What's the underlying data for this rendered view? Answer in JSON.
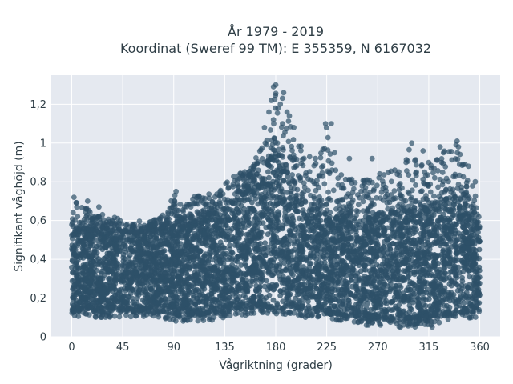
{
  "chart_data": {
    "type": "scatter",
    "title": "År 1979 - 2019",
    "subtitle": "Koordinat (Sweref 99 TM): E 355359, N 6167032",
    "xlabel": "Vågriktning (grader)",
    "ylabel": "Signifikant våghöjd (m)",
    "xlim": [
      -18,
      378
    ],
    "ylim": [
      0,
      1.35
    ],
    "grid": true,
    "x_ticks": [
      0,
      45,
      90,
      135,
      180,
      225,
      270,
      315,
      360
    ],
    "x_tick_labels": [
      "0",
      "45",
      "90",
      "135",
      "180",
      "225",
      "270",
      "315",
      "360"
    ],
    "y_ticks": [
      0,
      0.2,
      0.4,
      0.6,
      0.8,
      1.0,
      1.2
    ],
    "y_tick_labels": [
      "0",
      "0,2",
      "0,4",
      "0,6",
      "0,8",
      "1",
      "1,2"
    ],
    "colors": {
      "marker": "#2e5068",
      "plot_bg": "#e5e9f0",
      "grid": "#ffffff"
    },
    "series": [
      {
        "x": [
          0,
          5,
          10,
          15,
          20,
          25,
          30,
          35,
          40,
          45,
          50,
          55,
          60,
          65,
          70,
          75,
          80,
          85,
          90,
          95,
          100,
          105,
          110,
          115,
          120,
          125,
          130,
          135,
          140,
          145,
          150,
          155,
          160,
          165,
          170,
          175,
          180,
          185,
          190,
          195,
          200,
          205,
          210,
          215,
          220,
          225,
          230,
          235,
          240,
          245,
          250,
          255,
          260,
          265,
          270,
          275,
          280,
          285,
          290,
          295,
          300,
          305,
          310,
          315,
          320,
          325,
          330,
          335,
          340,
          345,
          350,
          355,
          360
        ],
        "y_min": [
          0.1,
          0.09,
          0.1,
          0.11,
          0.1,
          0.1,
          0.08,
          0.1,
          0.1,
          0.1,
          0.1,
          0.1,
          0.1,
          0.1,
          0.1,
          0.1,
          0.09,
          0.09,
          0.08,
          0.08,
          0.08,
          0.08,
          0.08,
          0.08,
          0.09,
          0.08,
          0.09,
          0.1,
          0.1,
          0.11,
          0.11,
          0.11,
          0.12,
          0.12,
          0.12,
          0.12,
          0.12,
          0.11,
          0.11,
          0.12,
          0.11,
          0.1,
          0.1,
          0.1,
          0.1,
          0.09,
          0.08,
          0.08,
          0.08,
          0.07,
          0.07,
          0.07,
          0.06,
          0.06,
          0.06,
          0.06,
          0.05,
          0.05,
          0.05,
          0.05,
          0.05,
          0.05,
          0.05,
          0.05,
          0.06,
          0.07,
          0.08,
          0.08,
          0.09,
          0.09,
          0.09,
          0.1,
          0.1
        ],
        "y_max": [
          0.62,
          0.72,
          0.66,
          0.67,
          0.62,
          0.65,
          0.62,
          0.61,
          0.62,
          0.6,
          0.59,
          0.58,
          0.6,
          0.57,
          0.6,
          0.61,
          0.63,
          0.66,
          0.75,
          0.71,
          0.67,
          0.72,
          0.73,
          0.75,
          0.74,
          0.75,
          0.77,
          0.78,
          0.82,
          0.84,
          0.86,
          0.86,
          0.9,
          0.95,
          1.0,
          1.07,
          1.3,
          1.26,
          1.16,
          1.08,
          1.01,
          0.96,
          0.93,
          0.93,
          0.96,
          1.1,
          0.9,
          0.86,
          0.86,
          0.82,
          0.84,
          0.81,
          0.83,
          0.81,
          0.86,
          0.86,
          0.86,
          0.87,
          0.93,
          0.98,
          0.97,
          0.91,
          0.89,
          0.9,
          0.92,
          0.93,
          0.97,
          0.98,
          1.01,
          0.92,
          0.81,
          0.78,
          0.59
        ],
        "y_dense": [
          0.52,
          0.55,
          0.56,
          0.55,
          0.55,
          0.55,
          0.56,
          0.55,
          0.54,
          0.54,
          0.54,
          0.54,
          0.54,
          0.54,
          0.54,
          0.55,
          0.56,
          0.57,
          0.58,
          0.58,
          0.58,
          0.59,
          0.6,
          0.62,
          0.63,
          0.64,
          0.65,
          0.66,
          0.68,
          0.7,
          0.72,
          0.75,
          0.78,
          0.82,
          0.86,
          0.92,
          0.98,
          0.9,
          0.84,
          0.76,
          0.7,
          0.68,
          0.66,
          0.65,
          0.64,
          0.64,
          0.63,
          0.62,
          0.62,
          0.62,
          0.62,
          0.62,
          0.63,
          0.63,
          0.63,
          0.63,
          0.63,
          0.64,
          0.64,
          0.64,
          0.65,
          0.65,
          0.66,
          0.67,
          0.68,
          0.7,
          0.71,
          0.72,
          0.73,
          0.7,
          0.66,
          0.62,
          0.55
        ],
        "peaks": [
          {
            "x": 180,
            "y": 1.3
          },
          {
            "x": 178,
            "y": 1.29
          },
          {
            "x": 176,
            "y": 1.22
          },
          {
            "x": 184,
            "y": 1.2
          },
          {
            "x": 187,
            "y": 1.26
          },
          {
            "x": 182,
            "y": 1.18
          },
          {
            "x": 174,
            "y": 1.16
          },
          {
            "x": 190,
            "y": 1.16
          },
          {
            "x": 178,
            "y": 1.12
          },
          {
            "x": 186,
            "y": 1.1
          },
          {
            "x": 192,
            "y": 1.14
          },
          {
            "x": 196,
            "y": 1.08
          },
          {
            "x": 170,
            "y": 1.08
          },
          {
            "x": 224,
            "y": 1.1
          },
          {
            "x": 229,
            "y": 1.1
          },
          {
            "x": 300,
            "y": 1.0
          },
          {
            "x": 340,
            "y": 1.01
          },
          {
            "x": 310,
            "y": 0.96
          },
          {
            "x": 328,
            "y": 0.95
          },
          {
            "x": 215,
            "y": 0.92
          },
          {
            "x": 232,
            "y": 0.95
          },
          {
            "x": 245,
            "y": 0.92
          },
          {
            "x": 265,
            "y": 0.92
          },
          {
            "x": 285,
            "y": 0.86
          },
          {
            "x": 350,
            "y": 0.88
          },
          {
            "x": 347,
            "y": 0.89
          },
          {
            "x": 356,
            "y": 0.8
          },
          {
            "x": 2,
            "y": 0.72
          },
          {
            "x": 92,
            "y": 0.75
          },
          {
            "x": 136,
            "y": 0.79
          },
          {
            "x": 152,
            "y": 0.84
          },
          {
            "x": 160,
            "y": 0.88
          },
          {
            "x": 295,
            "y": 0.9
          },
          {
            "x": 325,
            "y": 0.98
          },
          {
            "x": 24,
            "y": 0.67
          },
          {
            "x": 14,
            "y": 0.7
          },
          {
            "x": 290,
            "y": 0.05
          },
          {
            "x": 298,
            "y": 0.07
          },
          {
            "x": 318,
            "y": 0.05
          },
          {
            "x": 260,
            "y": 0.06
          }
        ]
      }
    ]
  }
}
